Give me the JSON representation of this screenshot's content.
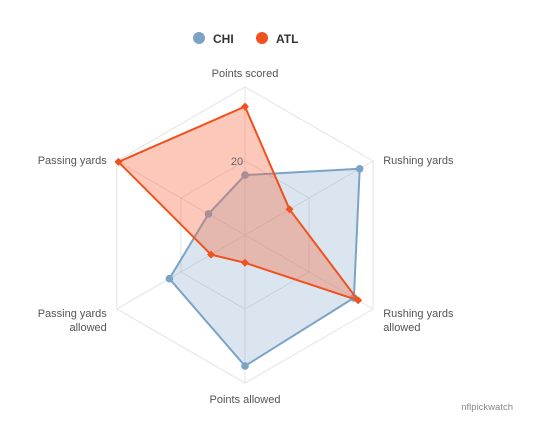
{
  "chart_data": {
    "type": "radar",
    "axes": [
      "Points scored",
      "Rushing yards",
      "Rushing yards allowed",
      "Points allowed",
      "Passing yards allowed",
      "Passing yards"
    ],
    "axis_labels": [
      [
        "Points scored"
      ],
      [
        "Rushing yards"
      ],
      [
        "Rushing yards",
        "allowed"
      ],
      [
        "Points allowed"
      ],
      [
        "Passing yards",
        "allowed"
      ],
      [
        "Passing yards"
      ]
    ],
    "ylim": [
      0,
      40
    ],
    "tick_values": [
      20
    ],
    "grid": true,
    "legend_position": "top-center",
    "series": [
      {
        "name": "CHI",
        "color": "#7ba3c6",
        "fill": "rgba(123,163,198,0.28)",
        "values": [
          16.2,
          35.8,
          34.0,
          35.4,
          23.6,
          11.4
        ]
      },
      {
        "name": "ATL",
        "color": "#f0511e",
        "fill": "rgba(245,110,70,0.38)",
        "values": [
          34.7,
          13.9,
          35.3,
          7.5,
          10.6,
          39.5
        ]
      }
    ]
  },
  "credit": "nflpickwatch"
}
